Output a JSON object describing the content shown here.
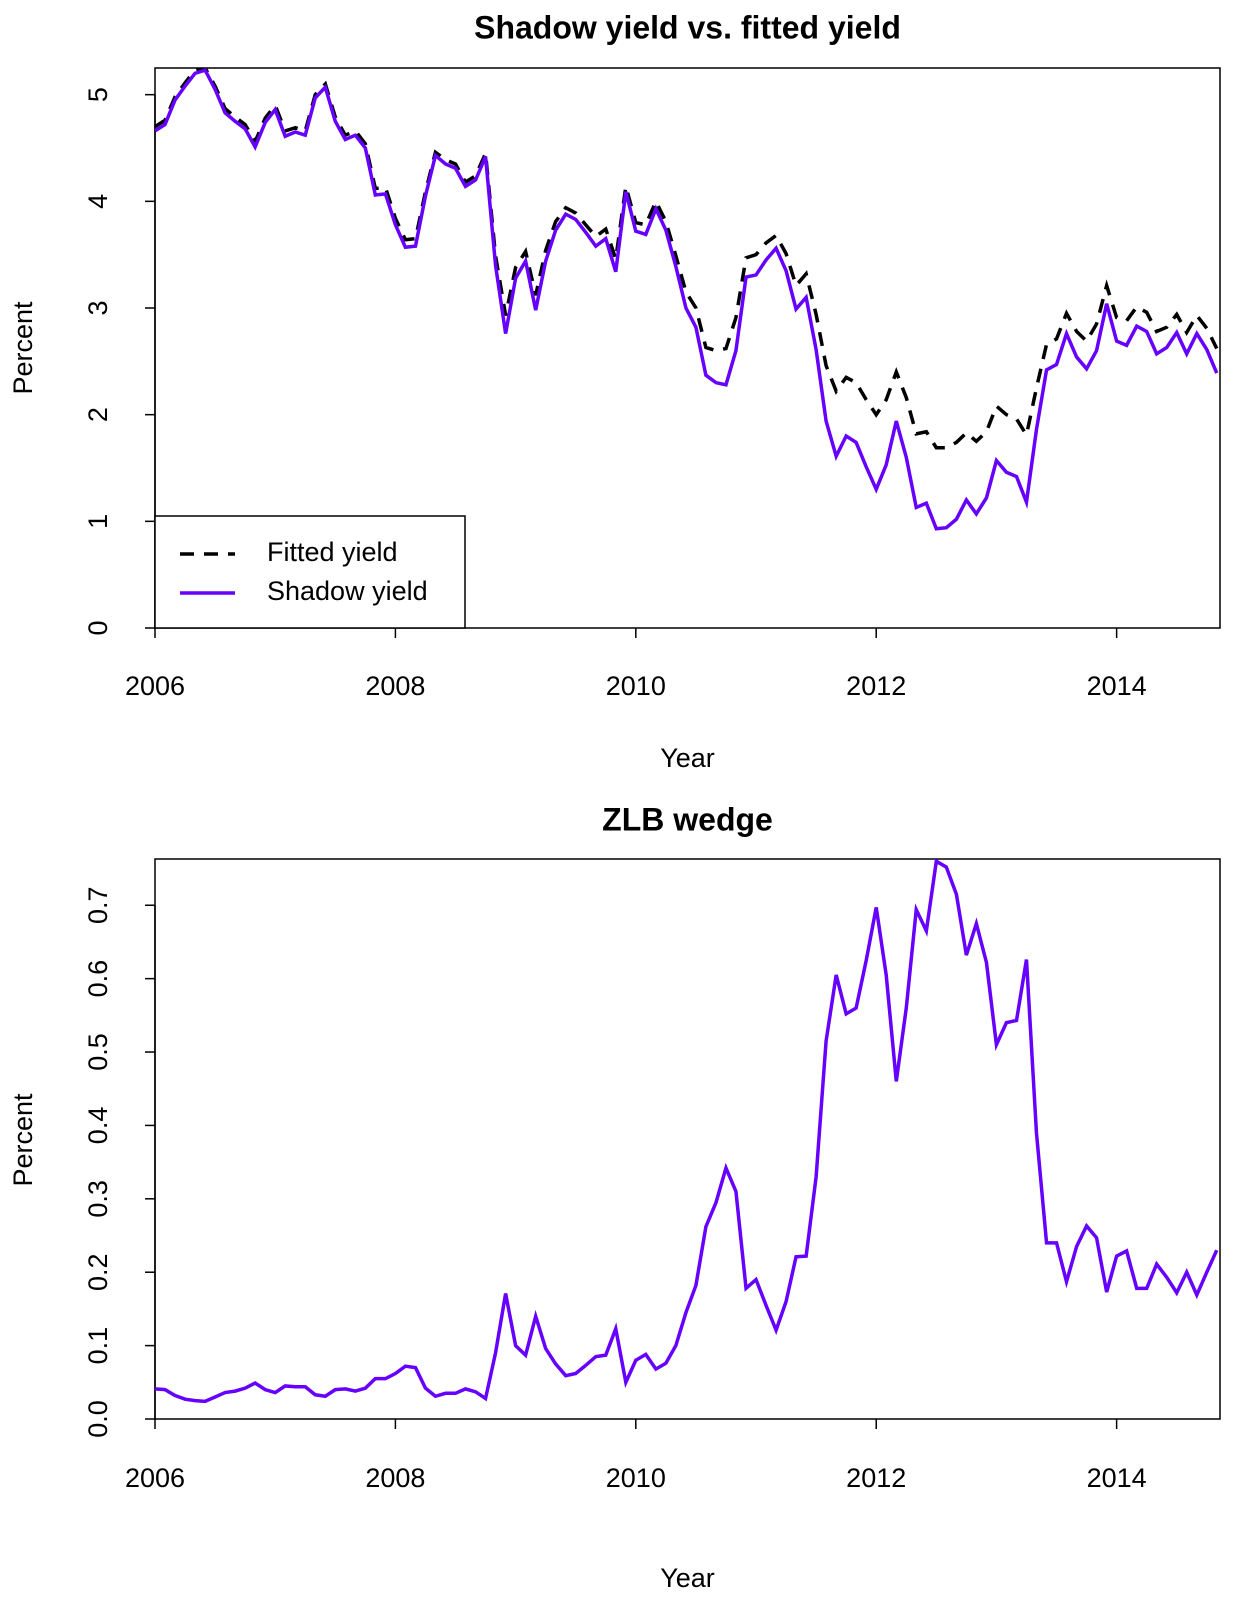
{
  "chart_data": [
    {
      "type": "line",
      "title": "Shadow yield vs. fitted yield",
      "xlabel": "Year",
      "ylabel": "Percent",
      "x": [
        2006,
        2006.083,
        2006.167,
        2006.25,
        2006.333,
        2006.417,
        2006.5,
        2006.583,
        2006.667,
        2006.75,
        2006.833,
        2006.917,
        2007,
        2007.083,
        2007.167,
        2007.25,
        2007.333,
        2007.417,
        2007.5,
        2007.583,
        2007.667,
        2007.75,
        2007.833,
        2007.917,
        2008,
        2008.083,
        2008.167,
        2008.25,
        2008.333,
        2008.417,
        2008.5,
        2008.583,
        2008.667,
        2008.75,
        2008.833,
        2008.917,
        2009,
        2009.083,
        2009.167,
        2009.25,
        2009.333,
        2009.417,
        2009.5,
        2009.583,
        2009.667,
        2009.75,
        2009.833,
        2009.917,
        2010,
        2010.083,
        2010.167,
        2010.25,
        2010.333,
        2010.417,
        2010.5,
        2010.583,
        2010.667,
        2010.75,
        2010.833,
        2010.917,
        2011,
        2011.083,
        2011.167,
        2011.25,
        2011.333,
        2011.417,
        2011.5,
        2011.583,
        2011.667,
        2011.75,
        2011.833,
        2011.917,
        2012,
        2012.083,
        2012.167,
        2012.25,
        2012.333,
        2012.417,
        2012.5,
        2012.583,
        2012.667,
        2012.75,
        2012.833,
        2012.917,
        2013,
        2013.083,
        2013.167,
        2013.25,
        2013.333,
        2013.417,
        2013.5,
        2013.583,
        2013.667,
        2013.75,
        2013.833,
        2013.917,
        2014,
        2014.083,
        2014.167,
        2014.25,
        2014.333,
        2014.417,
        2014.5,
        2014.583,
        2014.667,
        2014.75,
        2014.833
      ],
      "series": [
        {
          "name": "Fitted yield",
          "color": "#000000",
          "linestyle": "dashed",
          "values": [
            4.7,
            4.76,
            4.98,
            5.11,
            5.23,
            5.25,
            5.08,
            4.87,
            4.79,
            4.72,
            4.56,
            4.78,
            4.9,
            4.66,
            4.69,
            4.66,
            5.0,
            5.1,
            4.79,
            4.62,
            4.66,
            4.54,
            4.12,
            4.13,
            3.84,
            3.64,
            3.65,
            4.09,
            4.46,
            4.39,
            4.35,
            4.18,
            4.24,
            4.45,
            3.49,
            2.93,
            3.38,
            3.53,
            3.12,
            3.54,
            3.81,
            3.94,
            3.89,
            3.78,
            3.67,
            3.74,
            3.46,
            4.14,
            3.8,
            3.78,
            4.0,
            3.81,
            3.49,
            3.15,
            3.0,
            2.63,
            2.6,
            2.62,
            2.91,
            3.47,
            3.5,
            3.61,
            3.68,
            3.51,
            3.21,
            3.32,
            2.94,
            2.46,
            2.22,
            2.35,
            2.3,
            2.14,
            2.0,
            2.14,
            2.4,
            2.16,
            1.82,
            1.84,
            1.69,
            1.69,
            1.74,
            1.83,
            1.75,
            1.84,
            2.08,
            2.0,
            1.96,
            1.81,
            2.25,
            2.66,
            2.71,
            2.95,
            2.78,
            2.69,
            2.85,
            3.21,
            2.91,
            2.88,
            3.01,
            2.96,
            2.78,
            2.82,
            2.94,
            2.77,
            2.93,
            2.81,
            2.62
          ]
        },
        {
          "name": "Shadow yield",
          "color": "#6600ff",
          "linestyle": "solid",
          "values": [
            4.66,
            4.72,
            4.95,
            5.08,
            5.2,
            5.23,
            5.05,
            4.83,
            4.75,
            4.68,
            4.51,
            4.74,
            4.86,
            4.61,
            4.65,
            4.62,
            4.97,
            5.07,
            4.75,
            4.58,
            4.62,
            4.5,
            4.06,
            4.07,
            3.78,
            3.57,
            3.58,
            4.05,
            4.43,
            4.35,
            4.31,
            4.14,
            4.2,
            4.42,
            3.4,
            2.76,
            3.28,
            3.44,
            2.98,
            3.44,
            3.73,
            3.88,
            3.83,
            3.71,
            3.58,
            3.65,
            3.34,
            4.09,
            3.72,
            3.69,
            3.93,
            3.73,
            3.39,
            3.0,
            2.82,
            2.37,
            2.3,
            2.28,
            2.6,
            3.29,
            3.31,
            3.45,
            3.56,
            3.35,
            2.99,
            3.1,
            2.61,
            1.94,
            1.61,
            1.8,
            1.74,
            1.51,
            1.3,
            1.53,
            1.94,
            1.6,
            1.13,
            1.17,
            0.93,
            0.94,
            1.02,
            1.2,
            1.07,
            1.22,
            1.57,
            1.46,
            1.42,
            1.18,
            1.86,
            2.42,
            2.47,
            2.76,
            2.54,
            2.43,
            2.6,
            3.04,
            2.69,
            2.65,
            2.83,
            2.78,
            2.57,
            2.63,
            2.77,
            2.57,
            2.76,
            2.61,
            2.39
          ]
        }
      ],
      "xlim": [
        2006,
        2014.86
      ],
      "xticks": [
        2006,
        2008,
        2010,
        2012,
        2014
      ],
      "ylim": [
        0,
        5.25
      ],
      "yticks": [
        0,
        1,
        2,
        3,
        4,
        5
      ],
      "legend": "bottomleft"
    },
    {
      "type": "line",
      "title": "ZLB wedge",
      "xlabel": "Year",
      "ylabel": "Percent",
      "x": [
        2006,
        2006.083,
        2006.167,
        2006.25,
        2006.333,
        2006.417,
        2006.5,
        2006.583,
        2006.667,
        2006.75,
        2006.833,
        2006.917,
        2007,
        2007.083,
        2007.167,
        2007.25,
        2007.333,
        2007.417,
        2007.5,
        2007.583,
        2007.667,
        2007.75,
        2007.833,
        2007.917,
        2008,
        2008.083,
        2008.167,
        2008.25,
        2008.333,
        2008.417,
        2008.5,
        2008.583,
        2008.667,
        2008.75,
        2008.833,
        2008.917,
        2009,
        2009.083,
        2009.167,
        2009.25,
        2009.333,
        2009.417,
        2009.5,
        2009.583,
        2009.667,
        2009.75,
        2009.833,
        2009.917,
        2010,
        2010.083,
        2010.167,
        2010.25,
        2010.333,
        2010.417,
        2010.5,
        2010.583,
        2010.667,
        2010.75,
        2010.833,
        2010.917,
        2011,
        2011.083,
        2011.167,
        2011.25,
        2011.333,
        2011.417,
        2011.5,
        2011.583,
        2011.667,
        2011.75,
        2011.833,
        2011.917,
        2012,
        2012.083,
        2012.167,
        2012.25,
        2012.333,
        2012.417,
        2012.5,
        2012.583,
        2012.667,
        2012.75,
        2012.833,
        2012.917,
        2013,
        2013.083,
        2013.167,
        2013.25,
        2013.333,
        2013.417,
        2013.5,
        2013.583,
        2013.667,
        2013.75,
        2013.833,
        2013.917,
        2014,
        2014.083,
        2014.167,
        2014.25,
        2014.333,
        2014.417,
        2014.5,
        2014.583,
        2014.667,
        2014.75,
        2014.833
      ],
      "series": [
        {
          "color": "#6600ff",
          "linestyle": "solid",
          "values": [
            0.041,
            0.04,
            0.032,
            0.027,
            0.025,
            0.024,
            0.03,
            0.036,
            0.038,
            0.042,
            0.049,
            0.04,
            0.036,
            0.045,
            0.044,
            0.044,
            0.033,
            0.031,
            0.04,
            0.041,
            0.038,
            0.042,
            0.055,
            0.055,
            0.062,
            0.072,
            0.07,
            0.042,
            0.031,
            0.035,
            0.035,
            0.041,
            0.037,
            0.028,
            0.09,
            0.171,
            0.1,
            0.087,
            0.14,
            0.096,
            0.075,
            0.059,
            0.062,
            0.073,
            0.085,
            0.087,
            0.123,
            0.05,
            0.08,
            0.088,
            0.068,
            0.076,
            0.1,
            0.145,
            0.182,
            0.262,
            0.295,
            0.342,
            0.31,
            0.178,
            0.19,
            0.155,
            0.121,
            0.16,
            0.221,
            0.222,
            0.33,
            0.515,
            0.605,
            0.552,
            0.56,
            0.625,
            0.697,
            0.605,
            0.46,
            0.56,
            0.694,
            0.665,
            0.76,
            0.752,
            0.715,
            0.632,
            0.675,
            0.622,
            0.51,
            0.54,
            0.543,
            0.626,
            0.39,
            0.24,
            0.24,
            0.187,
            0.235,
            0.263,
            0.247,
            0.173,
            0.222,
            0.229,
            0.178,
            0.178,
            0.211,
            0.193,
            0.172,
            0.2,
            0.169,
            0.2,
            0.23
          ]
        }
      ],
      "xlim": [
        2006,
        2014.86
      ],
      "xticks": [
        2006,
        2008,
        2010,
        2012,
        2014
      ],
      "ylim": [
        0,
        0.763
      ],
      "yticks": [
        {
          "value": 0,
          "label": "0.0"
        },
        0.1,
        0.2,
        0.3,
        0.4,
        0.5,
        0.6,
        0.7
      ]
    }
  ]
}
